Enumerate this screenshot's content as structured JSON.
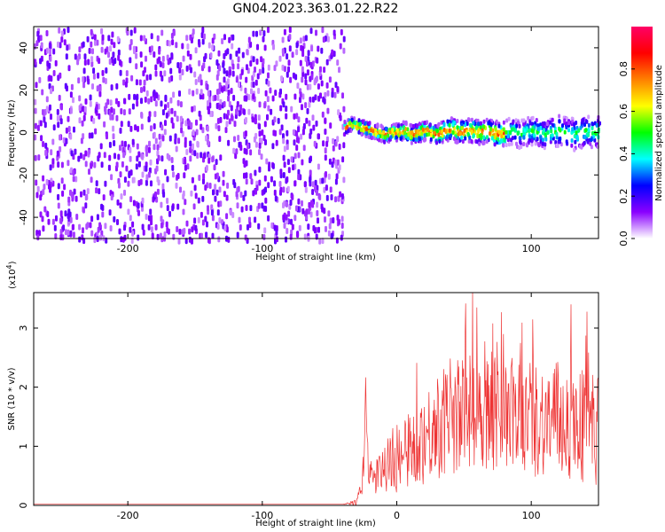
{
  "title": "GN04.2023.363.01.22.R22",
  "chart_data": [
    {
      "type": "heatmap",
      "name": "spectrogram",
      "xlabel": "Height of straight line (km)",
      "ylabel": "Frequency (Hz)",
      "xlim": [
        -270,
        150
      ],
      "ylim": [
        -50,
        50
      ],
      "xticks": [
        -200,
        -100,
        0,
        100
      ],
      "yticks": [
        -40,
        -20,
        0,
        20,
        40
      ],
      "noise_region_x": [
        -270,
        -40
      ],
      "signal_track": {
        "x": [
          -40,
          -35,
          -30,
          -25,
          -20,
          -15,
          -10,
          -5,
          0,
          5,
          10,
          15,
          20,
          25,
          30,
          35,
          40,
          45,
          50,
          55,
          60,
          65,
          70,
          75,
          80,
          85,
          90,
          95,
          100,
          105,
          110,
          115,
          120,
          125,
          130,
          135,
          140,
          145,
          150
        ],
        "y": [
          3,
          5,
          4,
          3,
          2,
          1,
          0,
          1,
          1,
          2,
          0,
          1,
          2,
          1,
          0,
          2,
          3,
          1,
          2,
          2,
          1,
          2,
          1,
          0,
          1,
          2,
          0,
          1,
          2,
          1,
          0,
          1,
          2,
          1,
          0,
          1,
          2,
          1,
          1
        ]
      },
      "colorbar": {
        "label": "Normalized spectral amplitude",
        "range": [
          0.0,
          1.0
        ],
        "ticks": [
          "0.0",
          "0.2",
          "0.4",
          "0.6",
          "0.8"
        ],
        "tick_values": [
          0.0,
          0.2,
          0.4,
          0.6,
          0.8
        ],
        "colors": [
          "#ffffff",
          "#8a00ff",
          "#0000ff",
          "#00ffff",
          "#00ff00",
          "#ffff00",
          "#ff8000",
          "#ff0000",
          "#ff0066"
        ]
      }
    },
    {
      "type": "line",
      "name": "snr",
      "xlabel": "Height of straight line (km)",
      "ylabel": "SNR (10 * v/v)",
      "y_multiplier_label": "(x10",
      "y_multiplier_exp": "4",
      "y_multiplier_close": ")",
      "xlim": [
        -270,
        150
      ],
      "ylim": [
        0,
        3.6
      ],
      "xticks": [
        -200,
        -100,
        0,
        100
      ],
      "yticks": [
        0,
        1,
        2,
        3
      ],
      "color": "#ee3333",
      "x": [
        -270,
        -40,
        -30,
        -26,
        -24,
        -23,
        -22,
        -21,
        -20,
        -18,
        -15,
        -10,
        -5,
        0,
        5,
        10,
        15,
        20,
        25,
        30,
        40,
        50,
        60,
        70,
        80,
        90,
        100,
        110,
        120,
        130,
        140,
        150
      ],
      "y": [
        0.02,
        0.02,
        0.05,
        0.3,
        1.0,
        2.1,
        1.2,
        0.6,
        0.5,
        0.45,
        0.5,
        0.6,
        0.7,
        0.75,
        0.85,
        0.95,
        1.05,
        1.15,
        1.25,
        1.35,
        1.45,
        1.55,
        1.6,
        1.6,
        1.55,
        1.5,
        1.5,
        1.45,
        1.45,
        1.4,
        1.35,
        1.3
      ],
      "spread": [
        0,
        0,
        0.05,
        0.2,
        0.3,
        0.3,
        0.3,
        0.25,
        0.25,
        0.3,
        0.35,
        0.4,
        0.5,
        0.55,
        0.6,
        0.65,
        0.7,
        0.8,
        0.85,
        0.9,
        0.95,
        1.0,
        1.0,
        1.0,
        1.0,
        1.0,
        1.0,
        1.0,
        1.0,
        1.0,
        1.0,
        1.0
      ]
    }
  ]
}
